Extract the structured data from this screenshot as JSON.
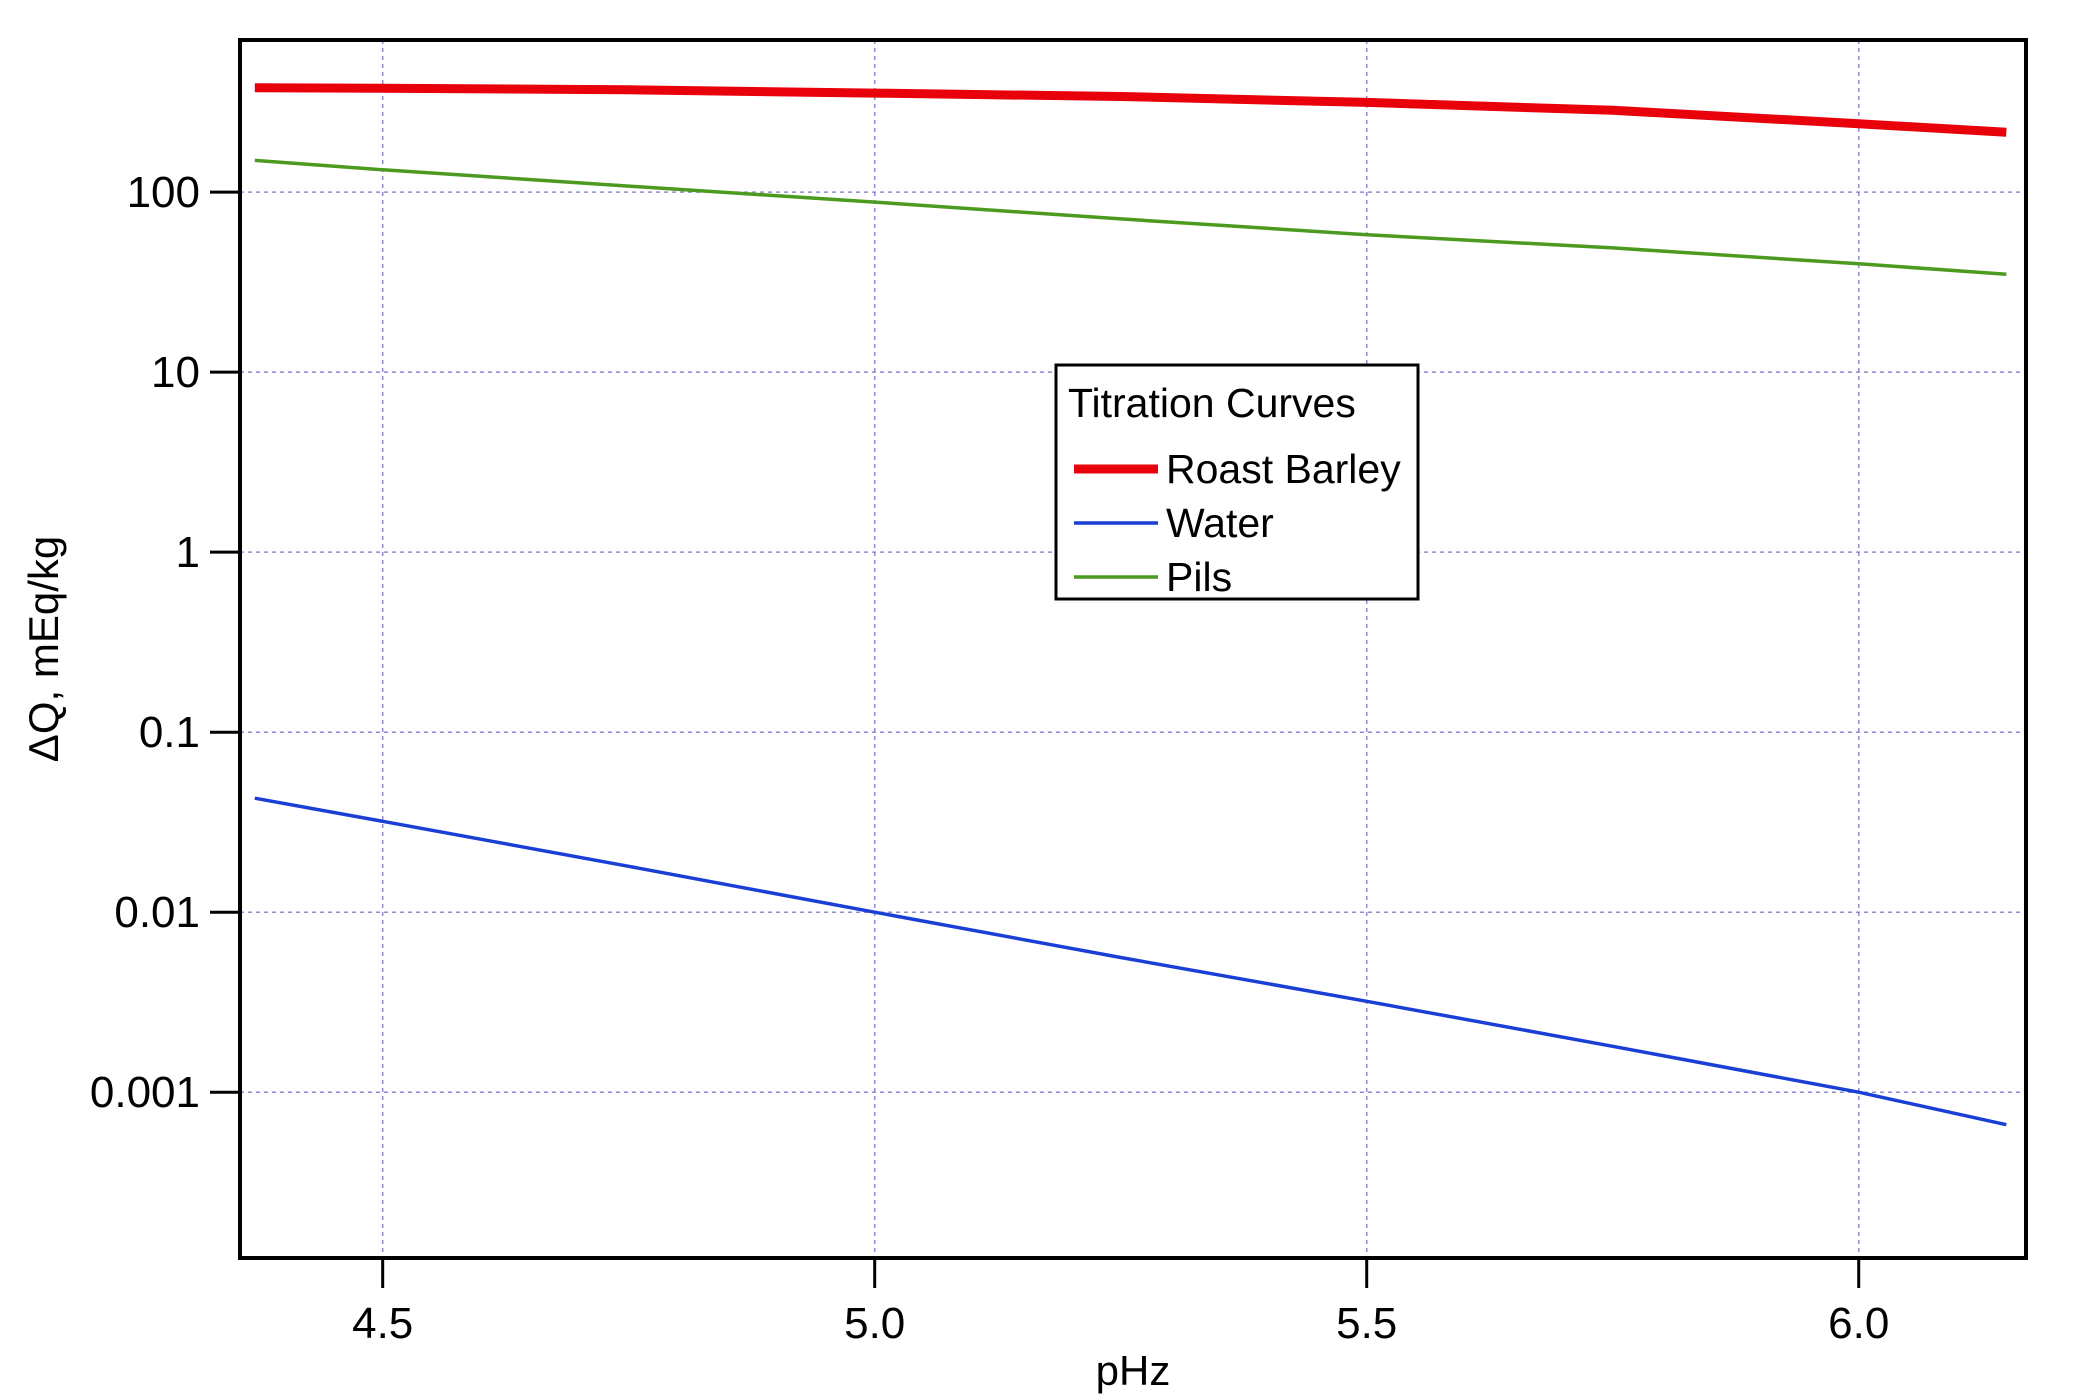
{
  "chart_data": {
    "type": "line",
    "title": "",
    "xlabel": "pHz",
    "ylabel": "ΔQ, mEq/kg",
    "xlim": [
      4.355,
      6.17
    ],
    "ylim": [
      0.00012,
      700
    ],
    "yscale": "log",
    "grid": true,
    "xticks": [
      4.5,
      5.0,
      5.5,
      6.0
    ],
    "xtick_labels": [
      "4.5",
      "5.0",
      "5.5",
      "6.0"
    ],
    "yticks": [
      0.001,
      0.01,
      0.1,
      1,
      10,
      100
    ],
    "ytick_labels": [
      "0.001",
      "0.01",
      "0.1",
      "1",
      "10",
      "100"
    ],
    "legend": {
      "title": "Titration Curves",
      "position": "center"
    },
    "series": [
      {
        "name": "Roast Barley",
        "color": "#e8000b",
        "thick": true,
        "x": [
          4.37,
          4.5,
          4.75,
          5.0,
          5.25,
          5.5,
          5.75,
          6.0,
          6.15
        ],
        "values": [
          380,
          378,
          370,
          355,
          340,
          315,
          285,
          240,
          215
        ]
      },
      {
        "name": "Water",
        "color": "#1a3fd6",
        "thick": false,
        "x": [
          4.37,
          4.5,
          4.75,
          5.0,
          5.25,
          5.5,
          5.75,
          6.0,
          6.15
        ],
        "values": [
          0.043,
          0.032,
          0.018,
          0.01,
          0.0056,
          0.0032,
          0.0018,
          0.001,
          0.00066
        ]
      },
      {
        "name": "Pils",
        "color": "#4c9a1f",
        "thick": false,
        "x": [
          4.37,
          4.5,
          4.75,
          5.0,
          5.25,
          5.5,
          5.75,
          6.0,
          6.15
        ],
        "values": [
          150,
          133,
          108,
          88,
          71,
          58,
          49,
          40,
          35
        ]
      }
    ]
  }
}
